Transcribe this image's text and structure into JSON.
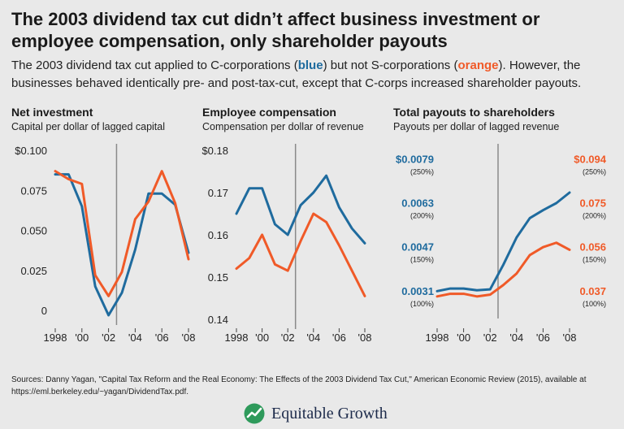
{
  "title": "The 2003 dividend tax cut didn’t affect business investment or employee compensation, only shareholder payouts",
  "subtitle": {
    "part1": "The 2003 dividend tax cut applied to C-corporations (",
    "blue_word": "blue",
    "part2": ") but not S-corporations (",
    "orange_word": "orange",
    "part3": "). However, the businesses behaved identically pre- and post-tax-cut, except that C-corps increased shareholder payouts."
  },
  "colors": {
    "blue": "#1f6b9e",
    "orange": "#f05a28",
    "vline": "#8a8a8a",
    "grid": "#d0d0d0"
  },
  "panels": [
    {
      "title": "Net investment",
      "subtitle": "Capital per dollar of lagged capital"
    },
    {
      "title": "Employee compensation",
      "subtitle": "Compensation per dollar of revenue"
    },
    {
      "title": "Total payouts to shareholders",
      "subtitle": "Payouts per dollar of lagged revenue"
    }
  ],
  "chart_data": [
    {
      "type": "line",
      "title": "Net investment",
      "x": [
        1998,
        1999,
        2000,
        2001,
        2002,
        2003,
        2004,
        2005,
        2006,
        2007,
        2008
      ],
      "xtick_labels": [
        "1998",
        "'00",
        "'02",
        "'04",
        "'06",
        "'08"
      ],
      "xtick_values": [
        1998,
        2000,
        2002,
        2004,
        2006,
        2008
      ],
      "ylim": [
        -0.003,
        0.1
      ],
      "ytick_values": [
        0,
        0.025,
        0.05,
        0.075,
        0.1
      ],
      "ytick_labels": [
        "0",
        "0.025",
        "0.050",
        "0.075",
        "$0.100"
      ],
      "vline": 2002.6,
      "series": [
        {
          "name": "C-corporations",
          "color": "blue",
          "values": [
            0.085,
            0.085,
            0.065,
            0.015,
            -0.003,
            0.011,
            0.038,
            0.073,
            0.073,
            0.066,
            0.036
          ]
        },
        {
          "name": "S-corporations",
          "color": "orange",
          "values": [
            0.087,
            0.082,
            0.079,
            0.022,
            0.009,
            0.024,
            0.057,
            0.068,
            0.087,
            0.067,
            0.032
          ]
        }
      ]
    },
    {
      "type": "line",
      "title": "Employee compensation",
      "x": [
        1998,
        1999,
        2000,
        2001,
        2002,
        2003,
        2004,
        2005,
        2006,
        2007,
        2008
      ],
      "xtick_labels": [
        "1998",
        "'00",
        "'02",
        "'04",
        "'06",
        "'08"
      ],
      "xtick_values": [
        1998,
        2000,
        2002,
        2004,
        2006,
        2008
      ],
      "ylim": [
        0.14,
        0.18
      ],
      "ytick_values": [
        0.14,
        0.15,
        0.16,
        0.17,
        0.18
      ],
      "ytick_labels": [
        "0.14",
        "0.15",
        "0.16",
        "0.17",
        "$0.18"
      ],
      "vline": 2002.6,
      "series": [
        {
          "name": "C-corporations",
          "color": "blue",
          "values": [
            0.165,
            0.171,
            0.171,
            0.1625,
            0.16,
            0.167,
            0.17,
            0.174,
            0.1665,
            0.1615,
            0.158
          ]
        },
        {
          "name": "S-corporations",
          "color": "orange",
          "values": [
            0.152,
            0.1545,
            0.16,
            0.153,
            0.1515,
            0.1585,
            0.165,
            0.163,
            0.1575,
            0.1515,
            0.1455
          ]
        }
      ]
    },
    {
      "type": "line",
      "title": "Total payouts to shareholders",
      "x": [
        1998,
        1999,
        2000,
        2001,
        2002,
        2003,
        2004,
        2005,
        2006,
        2007,
        2008
      ],
      "xtick_labels": [
        "1998",
        "'00",
        "'02",
        "'04",
        "'06",
        "'08"
      ],
      "xtick_values": [
        1998,
        2000,
        2002,
        2004,
        2006,
        2008
      ],
      "ylim_index_pct": [
        85,
        265
      ],
      "ytick_values_index_pct": [
        100,
        150,
        200,
        250
      ],
      "ylabels_left": [
        "0.0031",
        "0.0047",
        "0.0063",
        "$0.0079"
      ],
      "ylabels_right": [
        "0.037",
        "0.056",
        "0.075",
        "$0.094"
      ],
      "ytick_pct_labels": [
        "(100%)",
        "(150%)",
        "(200%)",
        "(250%)"
      ],
      "vline": 2002.6,
      "series": [
        {
          "name": "C-corporations",
          "color": "blue",
          "axis": "left",
          "values_index_pct": [
            105,
            108,
            108,
            106,
            107,
            135,
            166,
            188,
            197,
            205,
            217
          ]
        },
        {
          "name": "S-corporations",
          "color": "orange",
          "axis": "right",
          "values_index_pct": [
            99,
            102,
            102,
            99,
            101,
            112,
            125,
            146,
            155,
            160,
            152
          ]
        }
      ]
    }
  ],
  "footer": {
    "sources": "Sources: Danny Yagan, \"Capital Tax Reform and the Real Economy: The Effects of the 2003 Dividend Tax Cut,\" American Economic Review (2015), available at https://eml.berkeley.edu/~yagan/DividendTax.pdf.",
    "logo_text": "Equitable Growth"
  }
}
